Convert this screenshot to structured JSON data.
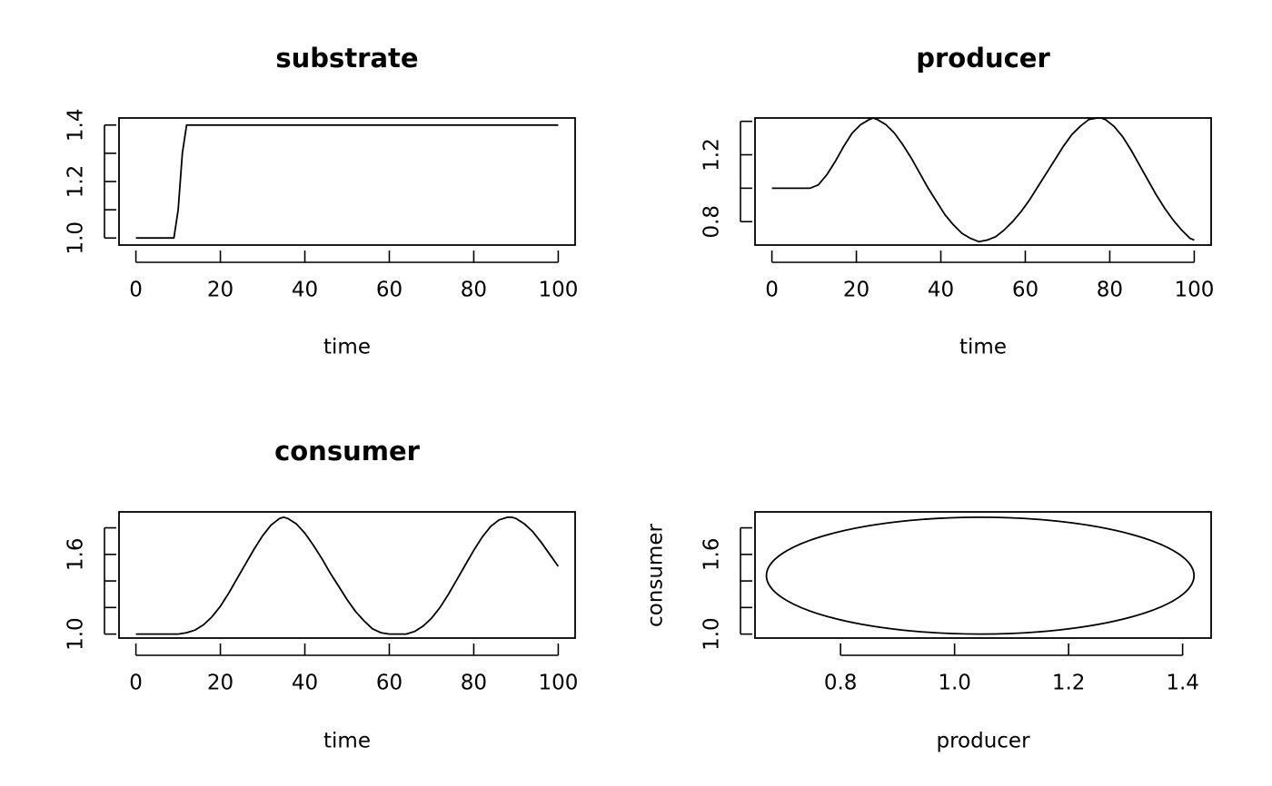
{
  "chart_data": [
    {
      "type": "line",
      "title": "substrate",
      "xlabel": "time",
      "ylabel": "",
      "xlim": [
        -4,
        104
      ],
      "ylim": [
        0.975,
        1.425
      ],
      "xticks": [
        0,
        20,
        40,
        60,
        80,
        100
      ],
      "xtick_labels": [
        "0",
        "20",
        "40",
        "60",
        "80",
        "100"
      ],
      "yticks": [
        1.0,
        1.1,
        1.2,
        1.3,
        1.4
      ],
      "ytick_labels": [
        "1.0",
        "",
        "1.2",
        "",
        "1.4"
      ],
      "x": [
        0,
        9,
        10,
        11,
        12,
        20,
        40,
        60,
        80,
        100
      ],
      "y": [
        1.0,
        1.0,
        1.1,
        1.3,
        1.4,
        1.4,
        1.4,
        1.4,
        1.4,
        1.4
      ]
    },
    {
      "type": "line",
      "title": "producer",
      "xlabel": "time",
      "ylabel": "",
      "xlim": [
        -4,
        104
      ],
      "ylim": [
        0.66,
        1.42
      ],
      "xticks": [
        0,
        20,
        40,
        60,
        80,
        100
      ],
      "xtick_labels": [
        "0",
        "20",
        "40",
        "60",
        "80",
        "100"
      ],
      "yticks": [
        0.8,
        1.0,
        1.2,
        1.4
      ],
      "ytick_labels": [
        "0.8",
        "",
        "1.2",
        ""
      ],
      "x": [
        0,
        5,
        9,
        11,
        13,
        15,
        17,
        19,
        21,
        23,
        24,
        25,
        27,
        29,
        31,
        33,
        35,
        37,
        39,
        41,
        43,
        45,
        47,
        49,
        51,
        53,
        55,
        57,
        59,
        61,
        63,
        65,
        67,
        69,
        71,
        73,
        75,
        77,
        78,
        79,
        81,
        83,
        85,
        87,
        89,
        91,
        93,
        95,
        97,
        99,
        100
      ],
      "y": [
        1.0,
        1.0,
        1.0,
        1.02,
        1.08,
        1.16,
        1.25,
        1.33,
        1.38,
        1.41,
        1.42,
        1.41,
        1.38,
        1.33,
        1.26,
        1.18,
        1.09,
        1.0,
        0.92,
        0.84,
        0.78,
        0.73,
        0.7,
        0.68,
        0.69,
        0.71,
        0.75,
        0.8,
        0.86,
        0.93,
        1.01,
        1.09,
        1.17,
        1.25,
        1.32,
        1.37,
        1.41,
        1.42,
        1.42,
        1.41,
        1.37,
        1.31,
        1.23,
        1.14,
        1.05,
        0.96,
        0.88,
        0.81,
        0.75,
        0.7,
        0.69
      ]
    },
    {
      "type": "line",
      "title": "consumer",
      "xlabel": "time",
      "ylabel": "",
      "xlim": [
        -4,
        104
      ],
      "ylim": [
        0.97,
        1.92
      ],
      "xticks": [
        0,
        20,
        40,
        60,
        80,
        100
      ],
      "xtick_labels": [
        "0",
        "20",
        "40",
        "60",
        "80",
        "100"
      ],
      "yticks": [
        1.0,
        1.2,
        1.4,
        1.6,
        1.8
      ],
      "ytick_labels": [
        "1.0",
        "",
        "",
        "1.6",
        ""
      ],
      "x": [
        0,
        5,
        10,
        12,
        14,
        16,
        18,
        20,
        22,
        24,
        26,
        28,
        30,
        32,
        34,
        35,
        36,
        38,
        40,
        42,
        44,
        46,
        48,
        50,
        52,
        54,
        56,
        58,
        60,
        62,
        64,
        66,
        68,
        70,
        72,
        74,
        76,
        78,
        80,
        82,
        84,
        86,
        88,
        89,
        90,
        92,
        94,
        96,
        98,
        100
      ],
      "y": [
        1.0,
        1.0,
        1.0,
        1.01,
        1.03,
        1.07,
        1.13,
        1.21,
        1.31,
        1.42,
        1.53,
        1.64,
        1.74,
        1.82,
        1.87,
        1.88,
        1.87,
        1.83,
        1.76,
        1.67,
        1.57,
        1.46,
        1.36,
        1.26,
        1.17,
        1.1,
        1.04,
        1.01,
        1.0,
        1.0,
        1.0,
        1.02,
        1.06,
        1.12,
        1.2,
        1.3,
        1.41,
        1.52,
        1.63,
        1.73,
        1.81,
        1.86,
        1.88,
        1.88,
        1.87,
        1.83,
        1.77,
        1.69,
        1.6,
        1.51
      ]
    },
    {
      "type": "line",
      "title": "",
      "xlabel": "producer",
      "ylabel": "consumer",
      "xlim": [
        0.65,
        1.45
      ],
      "ylim": [
        0.97,
        1.92
      ],
      "xticks": [
        0.8,
        1.0,
        1.2,
        1.4
      ],
      "xtick_labels": [
        "0.8",
        "1.0",
        "1.2",
        "1.4"
      ],
      "yticks": [
        1.0,
        1.2,
        1.4,
        1.6,
        1.8
      ],
      "ytick_labels": [
        "1.0",
        "",
        "",
        "1.6",
        ""
      ],
      "ellipse": {
        "center_x": 1.045,
        "center_y": 1.44,
        "radius_x": 0.375,
        "radius_y": 0.44
      }
    }
  ]
}
